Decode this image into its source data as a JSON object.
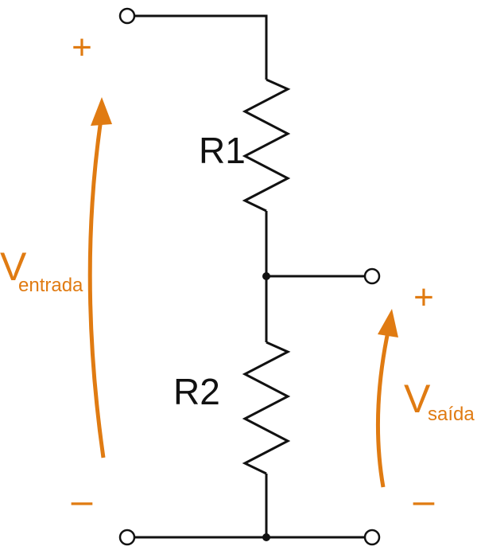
{
  "resistors": [
    {
      "label": "R1"
    },
    {
      "label": "R2"
    }
  ],
  "input": {
    "symbol": "V",
    "subscript": "entrada",
    "plus": "+",
    "minus": "–"
  },
  "output": {
    "symbol": "V",
    "subscript": "saída",
    "plus": "+",
    "minus": "–"
  }
}
